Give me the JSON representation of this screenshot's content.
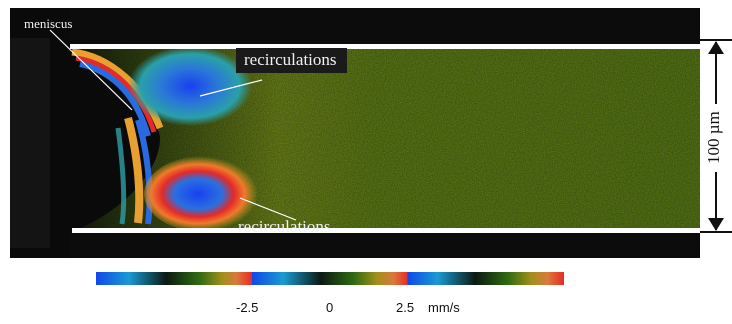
{
  "labels": {
    "meniscus": "meniscus",
    "recirculations_top": "recirculations",
    "recirculations_bottom": "recirculations",
    "scale": "100 µm"
  },
  "colorbar": {
    "ticks": [
      "-2.5",
      "0",
      "2.5"
    ],
    "unit": "mm/s"
  },
  "colors": {
    "background": "#0c0c0c",
    "flow_field": "#5a7a1a",
    "channel_wall": "#ffffff"
  }
}
